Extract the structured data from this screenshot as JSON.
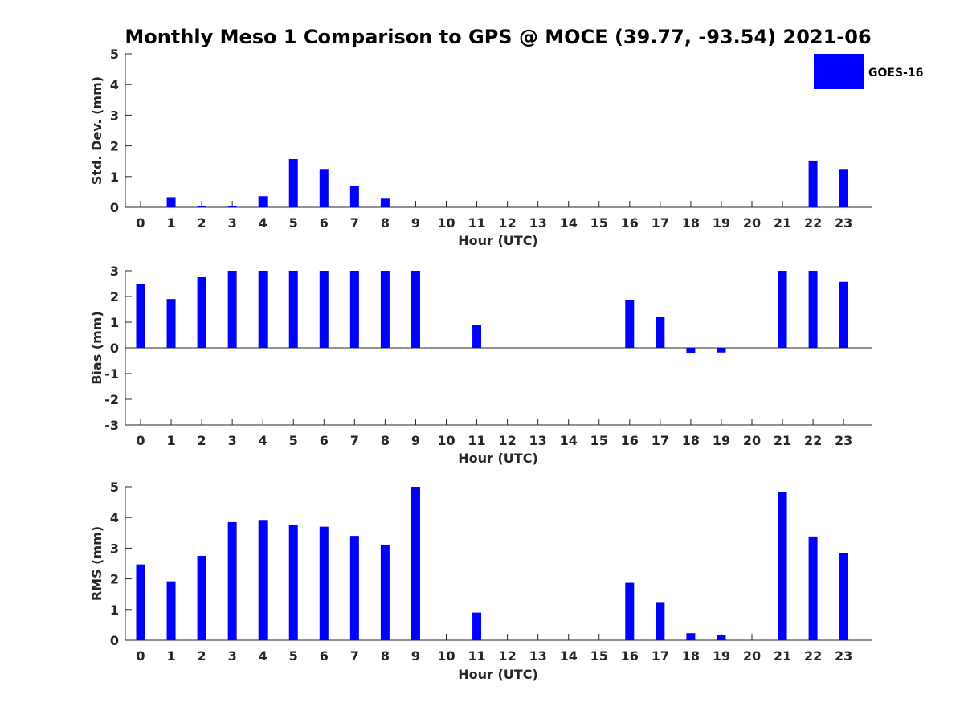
{
  "title": "Monthly Meso 1 Comparison to GPS @ MOCE (39.77, -93.54) 2021-06",
  "colors": {
    "bar": "#0000ff",
    "axis": "#262626",
    "background": "#ffffff"
  },
  "legend": {
    "label": "GOES-16",
    "placement": "top-right"
  },
  "chart_data": [
    {
      "type": "bar",
      "xlabel": "Hour (UTC)",
      "ylabel": "Std. Dev. (mm)",
      "ylim": [
        0,
        5
      ],
      "yticks": [
        0,
        1,
        2,
        3,
        4,
        5
      ],
      "categories": [
        "0",
        "1",
        "2",
        "3",
        "4",
        "5",
        "6",
        "7",
        "8",
        "9",
        "10",
        "11",
        "12",
        "13",
        "14",
        "15",
        "16",
        "17",
        "18",
        "19",
        "20",
        "21",
        "22",
        "23"
      ],
      "series": [
        {
          "name": "GOES-16",
          "values": [
            0,
            0.33,
            0.05,
            0.05,
            0.36,
            1.57,
            1.25,
            0.7,
            0.28,
            0,
            0,
            0,
            0,
            0,
            0,
            0,
            0,
            0,
            0,
            0,
            0,
            0,
            1.52,
            1.25
          ]
        }
      ],
      "grid": false
    },
    {
      "type": "bar",
      "xlabel": "Hour (UTC)",
      "ylabel": "Bias (mm)",
      "ylim": [
        -3,
        3
      ],
      "yticks": [
        -3,
        -2,
        -1,
        0,
        1,
        2,
        3
      ],
      "categories": [
        "0",
        "1",
        "2",
        "3",
        "4",
        "5",
        "6",
        "7",
        "8",
        "9",
        "10",
        "11",
        "12",
        "13",
        "14",
        "15",
        "16",
        "17",
        "18",
        "19",
        "20",
        "21",
        "22",
        "23"
      ],
      "series": [
        {
          "name": "GOES-16",
          "values": [
            2.48,
            1.9,
            2.75,
            3,
            3,
            3,
            3,
            3,
            3,
            3,
            0,
            0.9,
            0,
            0,
            0,
            0,
            1.87,
            1.22,
            -0.22,
            -0.18,
            0,
            3,
            3,
            2.57
          ]
        }
      ],
      "grid": false
    },
    {
      "type": "bar",
      "xlabel": "Hour (UTC)",
      "ylabel": "RMS (mm)",
      "ylim": [
        0,
        5
      ],
      "yticks": [
        0,
        1,
        2,
        3,
        4,
        5
      ],
      "categories": [
        "0",
        "1",
        "2",
        "3",
        "4",
        "5",
        "6",
        "7",
        "8",
        "9",
        "10",
        "11",
        "12",
        "13",
        "14",
        "15",
        "16",
        "17",
        "18",
        "19",
        "20",
        "21",
        "22",
        "23"
      ],
      "series": [
        {
          "name": "GOES-16",
          "values": [
            2.47,
            1.92,
            2.75,
            3.85,
            3.92,
            3.75,
            3.7,
            3.4,
            3.1,
            5,
            0,
            0.9,
            0,
            0,
            0,
            0,
            1.87,
            1.22,
            0.23,
            0.17,
            0,
            4.83,
            3.38,
            2.85
          ]
        }
      ],
      "grid": false
    }
  ]
}
